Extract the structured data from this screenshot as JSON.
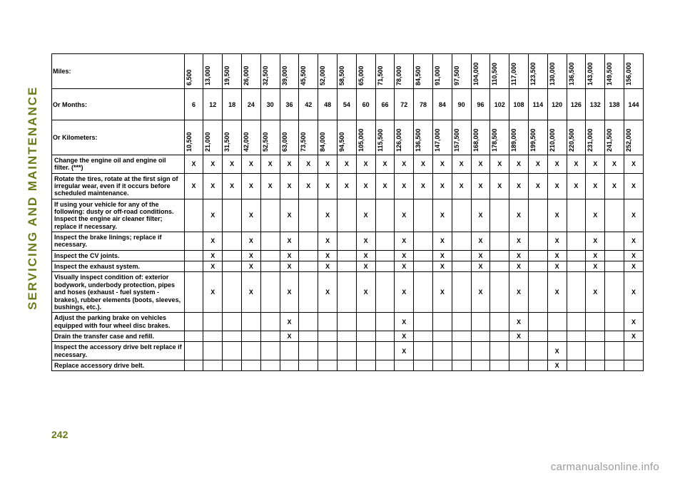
{
  "sidebar_title": "SERVICING AND MAINTENANCE",
  "page_number": "242",
  "watermark": "carmanualsonline.info",
  "colors": {
    "accent": "#6b7a1c",
    "text": "#000000",
    "border": "#000000",
    "background": "#ffffff",
    "watermark": "#9a9a9a"
  },
  "maintenance_table": {
    "type": "table",
    "header_labels": {
      "miles": "Miles:",
      "months": "Or Months:",
      "kilometers": "Or Kilometers:"
    },
    "columns": {
      "miles": [
        "6,500",
        "13,000",
        "19,500",
        "26,000",
        "32,500",
        "39,000",
        "45,500",
        "52,000",
        "58,500",
        "65,000",
        "71,500",
        "78,000",
        "84,500",
        "91,000",
        "97,500",
        "104,000",
        "110,500",
        "117,000",
        "123,500",
        "130,000",
        "136,500",
        "143,000",
        "149,500",
        "156,000"
      ],
      "months": [
        "6",
        "12",
        "18",
        "24",
        "30",
        "36",
        "42",
        "48",
        "54",
        "60",
        "66",
        "72",
        "78",
        "84",
        "90",
        "96",
        "102",
        "108",
        "114",
        "120",
        "126",
        "132",
        "138",
        "144"
      ],
      "kilometers": [
        "10,500",
        "21,000",
        "31,500",
        "42,000",
        "52,500",
        "63,000",
        "73,500",
        "84,000",
        "94,500",
        "105,000",
        "115,500",
        "126,000",
        "136,500",
        "147,000",
        "157,500",
        "168,000",
        "178,500",
        "189,000",
        "199,500",
        "210,000",
        "220,500",
        "231,000",
        "241,500",
        "252,000"
      ]
    },
    "rows": [
      {
        "label": "Change the engine oil and engine oil filter. (***)",
        "marks": [
          "X",
          "X",
          "X",
          "X",
          "X",
          "X",
          "X",
          "X",
          "X",
          "X",
          "X",
          "X",
          "X",
          "X",
          "X",
          "X",
          "X",
          "X",
          "X",
          "X",
          "X",
          "X",
          "X",
          "X"
        ]
      },
      {
        "label": "Rotate the tires, rotate at the first sign of irregular wear, even if it occurs before scheduled maintenance.",
        "marks": [
          "X",
          "X",
          "X",
          "X",
          "X",
          "X",
          "X",
          "X",
          "X",
          "X",
          "X",
          "X",
          "X",
          "X",
          "X",
          "X",
          "X",
          "X",
          "X",
          "X",
          "X",
          "X",
          "X",
          "X"
        ]
      },
      {
        "label": "If using your vehicle for any of the following: dusty or off-road conditions. Inspect the engine air cleaner filter; replace if necessary.",
        "marks": [
          "",
          "X",
          "",
          "X",
          "",
          "X",
          "",
          "X",
          "",
          "X",
          "",
          "X",
          "",
          "X",
          "",
          "X",
          "",
          "X",
          "",
          "X",
          "",
          "X",
          "",
          "X"
        ]
      },
      {
        "label": "Inspect the brake linings; replace if necessary.",
        "marks": [
          "",
          "X",
          "",
          "X",
          "",
          "X",
          "",
          "X",
          "",
          "X",
          "",
          "X",
          "",
          "X",
          "",
          "X",
          "",
          "X",
          "",
          "X",
          "",
          "X",
          "",
          "X"
        ]
      },
      {
        "label": "Inspect the CV joints.",
        "marks": [
          "",
          "X",
          "",
          "X",
          "",
          "X",
          "",
          "X",
          "",
          "X",
          "",
          "X",
          "",
          "X",
          "",
          "X",
          "",
          "X",
          "",
          "X",
          "",
          "X",
          "",
          "X"
        ]
      },
      {
        "label": "Inspect the exhaust system.",
        "marks": [
          "",
          "X",
          "",
          "X",
          "",
          "X",
          "",
          "X",
          "",
          "X",
          "",
          "X",
          "",
          "X",
          "",
          "X",
          "",
          "X",
          "",
          "X",
          "",
          "X",
          "",
          "X"
        ]
      },
      {
        "label": "Visually inspect condition of: exterior bodywork, underbody protection, pipes and hoses (exhaust - fuel system - brakes), rubber elements (boots, sleeves, bushings, etc.).",
        "marks": [
          "",
          "X",
          "",
          "X",
          "",
          "X",
          "",
          "X",
          "",
          "X",
          "",
          "X",
          "",
          "X",
          "",
          "X",
          "",
          "X",
          "",
          "X",
          "",
          "X",
          "",
          "X"
        ]
      },
      {
        "label": "Adjust the parking brake on vehicles equipped with four wheel disc brakes.",
        "marks": [
          "",
          "",
          "",
          "",
          "",
          "X",
          "",
          "",
          "",
          "",
          "",
          "X",
          "",
          "",
          "",
          "",
          "",
          "X",
          "",
          "",
          "",
          "",
          "",
          "X"
        ]
      },
      {
        "label": "Drain the transfer case and refill.",
        "marks": [
          "",
          "",
          "",
          "",
          "",
          "X",
          "",
          "",
          "",
          "",
          "",
          "X",
          "",
          "",
          "",
          "",
          "",
          "X",
          "",
          "",
          "",
          "",
          "",
          "X"
        ]
      },
      {
        "label": "Inspect the accessory drive belt replace if necessary.",
        "marks": [
          "",
          "",
          "",
          "",
          "",
          "",
          "",
          "",
          "",
          "",
          "",
          "X",
          "",
          "",
          "",
          "",
          "",
          "",
          "",
          "X",
          "",
          "",
          "",
          ""
        ]
      },
      {
        "label": "Replace accessory drive belt.",
        "marks": [
          "",
          "",
          "",
          "",
          "",
          "",
          "",
          "",
          "",
          "",
          "",
          "",
          "",
          "",
          "",
          "",
          "",
          "",
          "",
          "X",
          "",
          "",
          "",
          ""
        ]
      }
    ]
  }
}
